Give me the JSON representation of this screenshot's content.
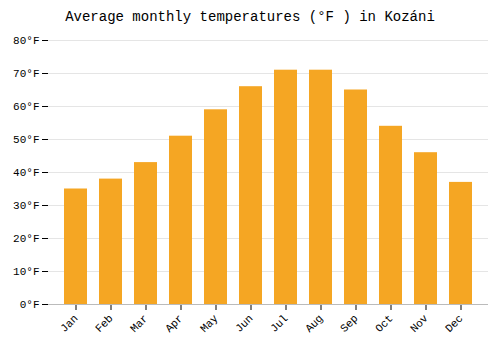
{
  "chart_data": {
    "type": "bar",
    "title": "Average monthly temperatures (°F ) in Kozáni",
    "categories": [
      "Jan",
      "Feb",
      "Mar",
      "Apr",
      "May",
      "Jun",
      "Jul",
      "Aug",
      "Sep",
      "Oct",
      "Nov",
      "Dec"
    ],
    "values": [
      35,
      38,
      43,
      51,
      59,
      66,
      71,
      71,
      65,
      54,
      46,
      37
    ],
    "color": "#F5A623",
    "ylim": [
      0,
      80
    ],
    "yticks": [
      {
        "value": 0,
        "label": "0°F"
      },
      {
        "value": 10,
        "label": "10°F"
      },
      {
        "value": 20,
        "label": "20°F"
      },
      {
        "value": 30,
        "label": "30°F"
      },
      {
        "value": 40,
        "label": "40°F"
      },
      {
        "value": 50,
        "label": "50°F"
      },
      {
        "value": 60,
        "label": "60°F"
      },
      {
        "value": 70,
        "label": "70°F"
      },
      {
        "value": 80,
        "label": "80°F"
      }
    ],
    "grid": true
  }
}
